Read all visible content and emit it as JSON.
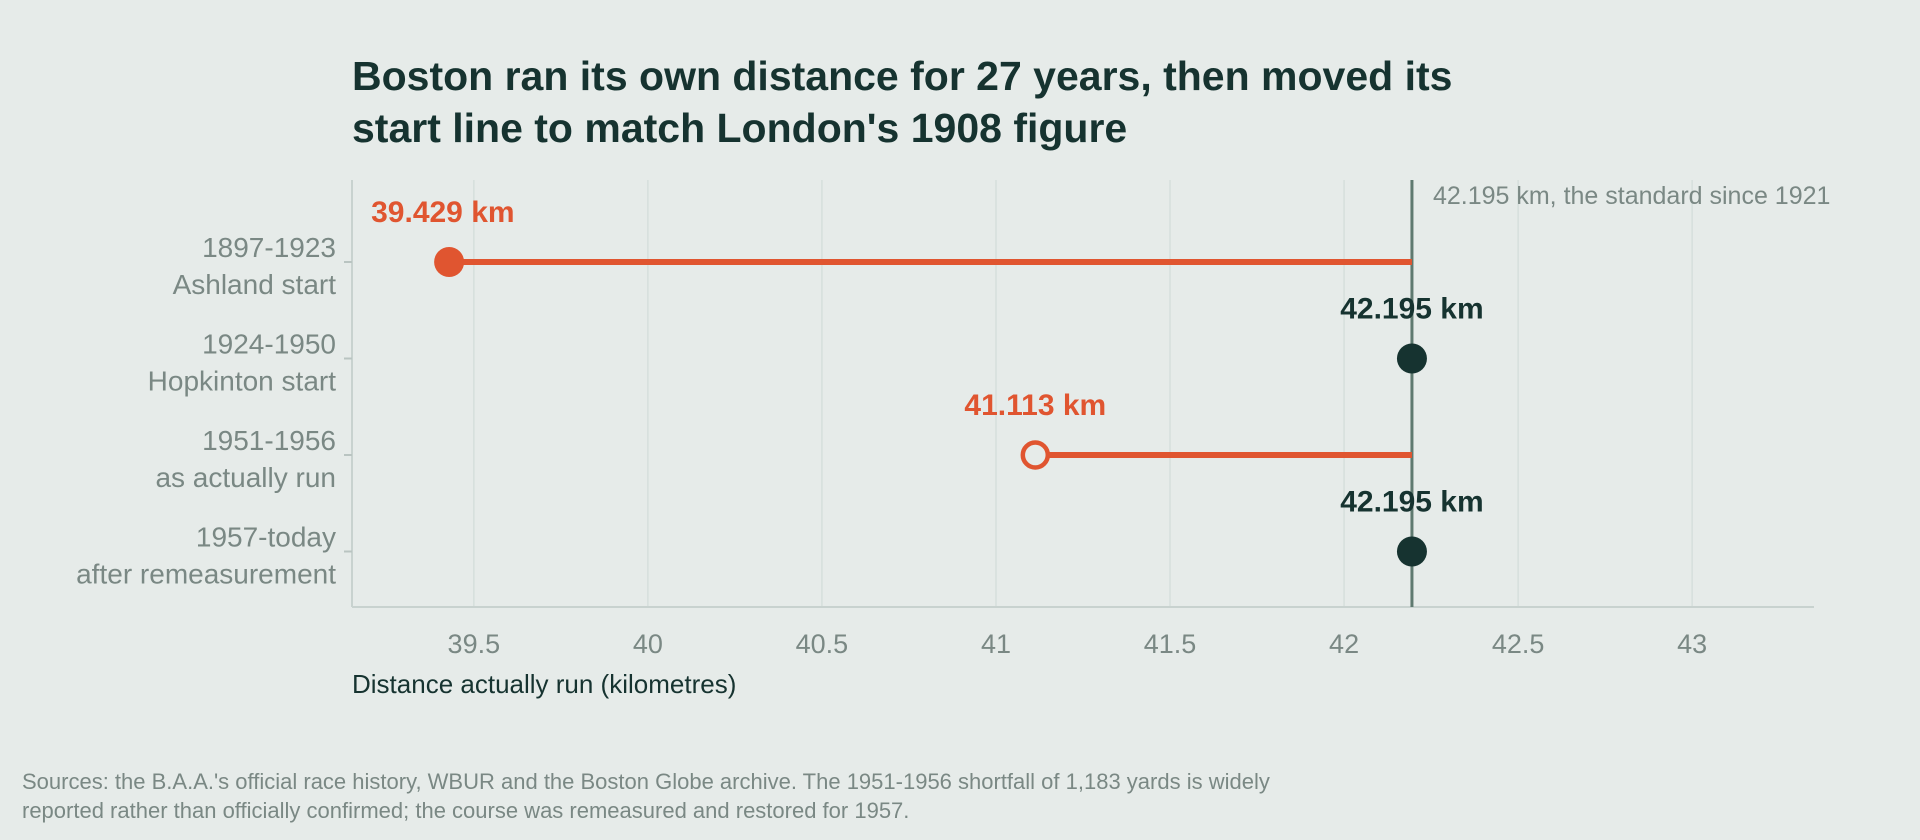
{
  "title_lines": [
    "Boston ran its own distance for 27 years, then moved its",
    "start line to match London's 1908 figure"
  ],
  "source_lines": [
    "Sources: the B.A.A.'s official race history, WBUR and the Boston Globe archive. The 1951-1956 shortfall of 1,183 yards is widely",
    "reported rather than officially confirmed; the course was remeasured and restored for 1957."
  ],
  "colors": {
    "background": "#e6ebe9",
    "short": "#e05530",
    "standard": "#163330",
    "muted": "#7a8884",
    "reference": "#5f7a70"
  },
  "chart_data": {
    "type": "dot-lollipop",
    "xlabel": "Distance actually run (kilometres)",
    "xlim": [
      39.15,
      43.35
    ],
    "xticks": [
      "39.5",
      "40",
      "40.5",
      "41",
      "41.5",
      "42",
      "42.5",
      "43"
    ],
    "grid": true,
    "reference": {
      "value": 42.195,
      "label": "42.195 km, the standard since 1921"
    },
    "rows": [
      {
        "label_lines": [
          "1897-1923",
          "Ashland start"
        ],
        "value": 39.429,
        "value_label": "39.429 km",
        "status": "short",
        "marker": "filled"
      },
      {
        "label_lines": [
          "1924-1950",
          "Hopkinton start"
        ],
        "value": 42.195,
        "value_label": "42.195 km",
        "status": "standard",
        "marker": "filled"
      },
      {
        "label_lines": [
          "1951-1956",
          "as actually run"
        ],
        "value": 41.113,
        "value_label": "41.113 km",
        "status": "short",
        "marker": "hollow"
      },
      {
        "label_lines": [
          "1957-today",
          "after remeasurement"
        ],
        "value": 42.195,
        "value_label": "42.195 km",
        "status": "standard",
        "marker": "filled"
      }
    ]
  }
}
